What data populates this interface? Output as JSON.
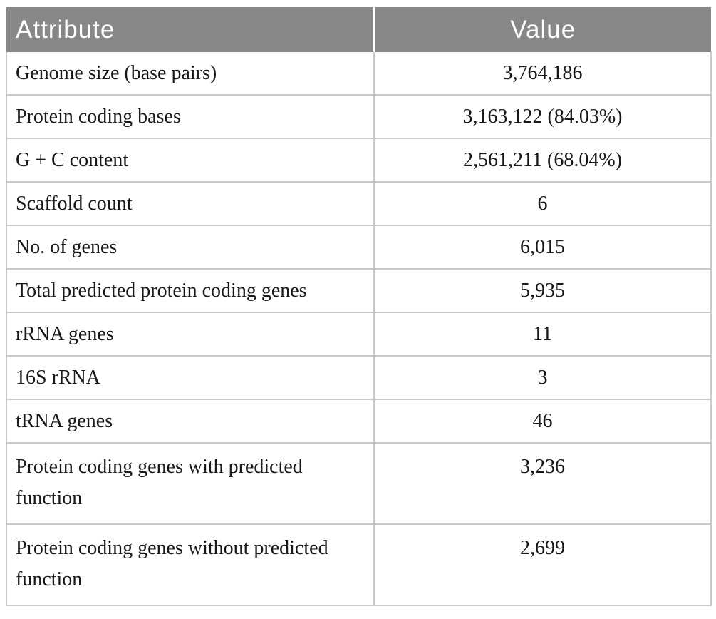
{
  "table": {
    "columns": [
      {
        "label": "Attribute"
      },
      {
        "label": "Value"
      }
    ],
    "rows": [
      {
        "attribute": "Genome size (base pairs)",
        "value": "3,764,186",
        "tall": false
      },
      {
        "attribute": "Protein coding bases",
        "value": "3,163,122 (84.03%)",
        "tall": false
      },
      {
        "attribute": "G + C content",
        "value": "2,561,211 (68.04%)",
        "tall": false
      },
      {
        "attribute": "Scaffold count",
        "value": "6",
        "tall": false
      },
      {
        "attribute": "No. of genes",
        "value": "6,015",
        "tall": false
      },
      {
        "attribute": "Total predicted protein coding genes",
        "value": "5,935",
        "tall": false
      },
      {
        "attribute": "rRNA genes",
        "value": "11",
        "tall": false
      },
      {
        "attribute": "16S rRNA",
        "value": "3",
        "tall": false
      },
      {
        "attribute": "tRNA genes",
        "value": "46",
        "tall": false
      },
      {
        "attribute": "Protein coding genes with predicted function",
        "value": "3,236",
        "tall": true
      },
      {
        "attribute": "Protein coding genes without predicted function",
        "value": "2,699",
        "tall": true
      }
    ],
    "colors": {
      "header_bg": "#878787",
      "header_text": "#ffffff",
      "border": "#c9c9c9",
      "body_text": "#191919"
    }
  }
}
